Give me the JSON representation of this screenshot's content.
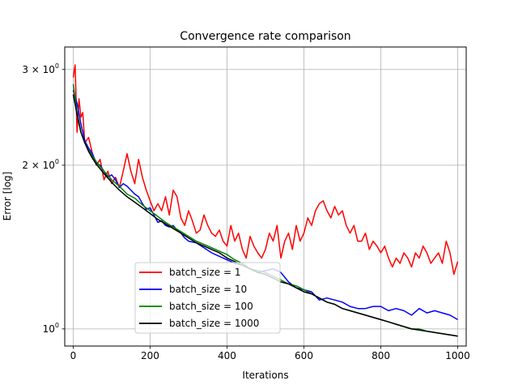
{
  "chart_data": {
    "type": "line",
    "title": "Convergence rate comparison",
    "xlabel": "Iterations",
    "ylabel": "Error [log]",
    "xlim": [
      -22,
      1022
    ],
    "ylim": [
      0.93,
      3.3
    ],
    "yscale": "log",
    "grid": true,
    "legend_position": "lower-center",
    "x_ticks": [
      0,
      200,
      400,
      600,
      800,
      1000
    ],
    "x_tick_labels": [
      "0",
      "200",
      "400",
      "600",
      "800",
      "1000"
    ],
    "y_ticks": [
      {
        "value": 3,
        "base": "3 × 10",
        "exp": "0"
      },
      {
        "value": 2,
        "base": "2 × 10",
        "exp": "0"
      },
      {
        "value": 1,
        "base": "10",
        "exp": "0"
      }
    ],
    "series": [
      {
        "name": "batch_size = 1",
        "color": "#ff0000",
        "x": [
          0,
          5,
          10,
          15,
          20,
          25,
          30,
          40,
          50,
          60,
          70,
          80,
          90,
          100,
          110,
          120,
          130,
          140,
          150,
          160,
          170,
          180,
          190,
          200,
          210,
          220,
          230,
          240,
          250,
          260,
          270,
          280,
          290,
          300,
          310,
          320,
          330,
          340,
          350,
          360,
          370,
          380,
          390,
          400,
          410,
          420,
          430,
          440,
          450,
          460,
          470,
          480,
          490,
          500,
          510,
          520,
          530,
          540,
          550,
          560,
          570,
          580,
          590,
          600,
          610,
          620,
          630,
          640,
          650,
          660,
          670,
          680,
          690,
          700,
          710,
          720,
          730,
          740,
          750,
          760,
          770,
          780,
          790,
          800,
          810,
          820,
          830,
          840,
          850,
          860,
          870,
          880,
          890,
          900,
          910,
          920,
          930,
          940,
          950,
          960,
          970,
          980,
          990,
          1000
        ],
        "y": [
          2.9,
          3.06,
          2.3,
          2.65,
          2.45,
          2.5,
          2.2,
          2.25,
          2.1,
          2.0,
          2.05,
          1.88,
          1.95,
          1.85,
          1.9,
          1.82,
          1.95,
          2.1,
          1.95,
          1.85,
          2.05,
          1.9,
          1.8,
          1.72,
          1.65,
          1.7,
          1.65,
          1.75,
          1.62,
          1.8,
          1.75,
          1.6,
          1.55,
          1.65,
          1.58,
          1.5,
          1.52,
          1.62,
          1.55,
          1.5,
          1.48,
          1.52,
          1.45,
          1.42,
          1.55,
          1.45,
          1.5,
          1.4,
          1.35,
          1.48,
          1.42,
          1.38,
          1.35,
          1.4,
          1.5,
          1.45,
          1.55,
          1.35,
          1.45,
          1.5,
          1.4,
          1.55,
          1.45,
          1.5,
          1.6,
          1.55,
          1.65,
          1.7,
          1.72,
          1.65,
          1.6,
          1.68,
          1.62,
          1.65,
          1.55,
          1.5,
          1.55,
          1.45,
          1.45,
          1.5,
          1.4,
          1.45,
          1.42,
          1.38,
          1.42,
          1.35,
          1.3,
          1.35,
          1.32,
          1.38,
          1.35,
          1.3,
          1.38,
          1.35,
          1.42,
          1.38,
          1.32,
          1.35,
          1.38,
          1.32,
          1.45,
          1.38,
          1.26,
          1.33
        ]
      },
      {
        "name": "batch_size = 10",
        "color": "#0000ff",
        "x": [
          0,
          10,
          20,
          30,
          40,
          50,
          60,
          70,
          80,
          90,
          100,
          110,
          120,
          130,
          140,
          150,
          160,
          170,
          180,
          190,
          200,
          210,
          220,
          230,
          240,
          250,
          260,
          270,
          280,
          290,
          300,
          320,
          340,
          360,
          380,
          400,
          420,
          440,
          460,
          480,
          500,
          520,
          540,
          560,
          580,
          600,
          620,
          640,
          660,
          680,
          700,
          720,
          740,
          760,
          780,
          800,
          820,
          840,
          860,
          880,
          900,
          920,
          940,
          960,
          980,
          1000
        ],
        "y": [
          2.75,
          2.6,
          2.38,
          2.22,
          2.15,
          2.1,
          2.02,
          2.0,
          1.95,
          1.9,
          1.92,
          1.88,
          1.82,
          1.85,
          1.83,
          1.8,
          1.77,
          1.75,
          1.7,
          1.66,
          1.67,
          1.62,
          1.57,
          1.58,
          1.55,
          1.54,
          1.55,
          1.52,
          1.5,
          1.47,
          1.45,
          1.44,
          1.41,
          1.38,
          1.36,
          1.34,
          1.32,
          1.31,
          1.29,
          1.27,
          1.28,
          1.29,
          1.27,
          1.22,
          1.19,
          1.18,
          1.17,
          1.13,
          1.14,
          1.13,
          1.12,
          1.1,
          1.09,
          1.09,
          1.1,
          1.1,
          1.08,
          1.09,
          1.08,
          1.06,
          1.09,
          1.07,
          1.08,
          1.07,
          1.06,
          1.04
        ]
      },
      {
        "name": "batch_size = 100",
        "color": "#008000",
        "x": [
          0,
          10,
          20,
          30,
          40,
          50,
          60,
          80,
          100,
          120,
          140,
          160,
          180,
          200,
          220,
          240,
          260,
          280,
          300,
          320,
          340,
          360,
          380,
          400,
          420,
          440,
          460,
          480,
          500,
          520,
          540,
          560,
          580,
          600,
          620,
          640,
          660,
          680,
          700,
          720,
          740,
          760,
          780,
          800,
          820,
          840,
          860,
          880,
          900,
          920,
          940,
          960,
          980,
          1000
        ],
        "y": [
          2.82,
          2.5,
          2.3,
          2.2,
          2.13,
          2.08,
          2.03,
          1.95,
          1.88,
          1.83,
          1.77,
          1.74,
          1.69,
          1.65,
          1.61,
          1.57,
          1.54,
          1.51,
          1.48,
          1.45,
          1.43,
          1.41,
          1.39,
          1.37,
          1.34,
          1.32,
          1.29,
          1.28,
          1.27,
          1.25,
          1.23,
          1.21,
          1.2,
          1.18,
          1.16,
          1.14,
          1.12,
          1.11,
          1.09,
          1.08,
          1.07,
          1.06,
          1.05,
          1.04,
          1.03,
          1.02,
          1.01,
          1.0,
          1.0,
          0.99,
          0.985,
          0.98,
          0.975,
          0.97
        ]
      },
      {
        "name": "batch_size = 1000",
        "color": "#000000",
        "x": [
          0,
          10,
          20,
          30,
          40,
          50,
          60,
          80,
          100,
          120,
          140,
          160,
          180,
          200,
          220,
          240,
          260,
          280,
          300,
          320,
          340,
          360,
          380,
          400,
          420,
          440,
          460,
          480,
          500,
          520,
          540,
          560,
          580,
          600,
          620,
          640,
          660,
          680,
          700,
          720,
          740,
          760,
          780,
          800,
          820,
          840,
          860,
          880,
          900,
          920,
          940,
          960,
          980,
          1000
        ],
        "y": [
          2.7,
          2.48,
          2.3,
          2.2,
          2.12,
          2.06,
          2.01,
          1.93,
          1.86,
          1.8,
          1.75,
          1.71,
          1.67,
          1.63,
          1.59,
          1.56,
          1.53,
          1.5,
          1.47,
          1.44,
          1.42,
          1.4,
          1.38,
          1.35,
          1.33,
          1.31,
          1.29,
          1.27,
          1.26,
          1.24,
          1.22,
          1.21,
          1.19,
          1.17,
          1.16,
          1.14,
          1.12,
          1.11,
          1.09,
          1.08,
          1.07,
          1.06,
          1.05,
          1.04,
          1.03,
          1.02,
          1.01,
          1.0,
          0.995,
          0.99,
          0.985,
          0.98,
          0.975,
          0.97
        ]
      }
    ]
  }
}
